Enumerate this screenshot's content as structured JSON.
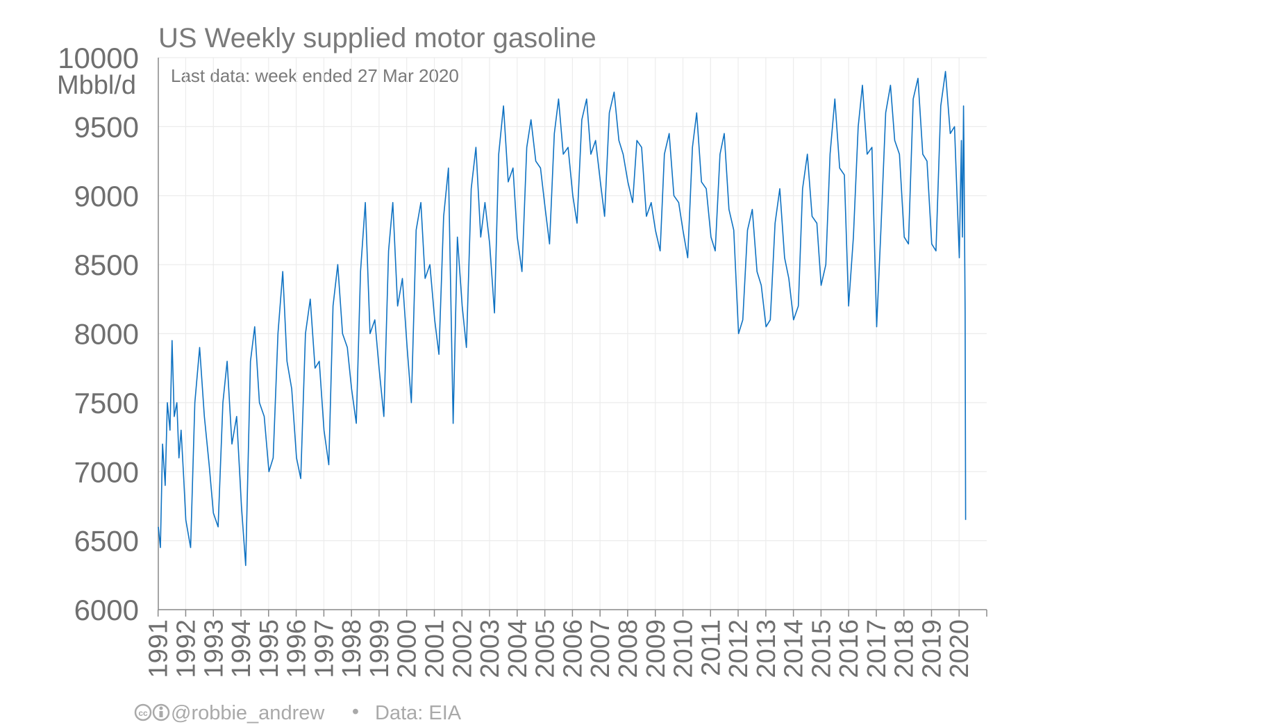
{
  "chart_data": {
    "type": "line",
    "title": "US Weekly supplied motor gasoline",
    "subtitle": "Last data: week ended 27 Mar 2020",
    "unit_label": "Mbbl/d",
    "ylim": [
      6000,
      10000
    ],
    "y_ticks": [
      "6000",
      "6500",
      "7000",
      "7500",
      "8000",
      "8500",
      "9000",
      "9500",
      "10000"
    ],
    "x_ticks": [
      "1991",
      "1992",
      "1993",
      "1994",
      "1995",
      "1996",
      "1997",
      "1998",
      "1999",
      "2000",
      "2001",
      "2002",
      "2003",
      "2004",
      "2005",
      "2006",
      "2007",
      "2008",
      "2009",
      "2010",
      "2011",
      "2012",
      "2013",
      "2014",
      "2015",
      "2016",
      "2017",
      "2018",
      "2019",
      "2020"
    ],
    "xlim": [
      "1991-01-04",
      "2020-12-31"
    ],
    "grid": true,
    "series_color": "#0f72c2",
    "series": [
      {
        "x": [
          "1991-01-04",
          "1991-02-01",
          "1991-03-01",
          "1991-04-05",
          "1991-05-03",
          "1991-06-07",
          "1991-07-05",
          "1991-08-02",
          "1991-09-06",
          "1991-10-04",
          "1991-11-01",
          "1991-12-06",
          "1992-01-03",
          "1992-03-06",
          "1992-05-01",
          "1992-07-03",
          "1992-09-04",
          "1992-11-06",
          "1993-01-01",
          "1993-03-05",
          "1993-05-07",
          "1993-07-02",
          "1993-09-03",
          "1993-11-05",
          "1994-01-07",
          "1994-03-04",
          "1994-05-06",
          "1994-07-01",
          "1994-09-02",
          "1994-11-04",
          "1995-01-06",
          "1995-03-03",
          "1995-05-05",
          "1995-07-07",
          "1995-09-01",
          "1995-11-03",
          "1996-01-05",
          "1996-03-01",
          "1996-05-03",
          "1996-07-05",
          "1996-09-06",
          "1996-11-01",
          "1997-01-03",
          "1997-03-07",
          "1997-05-02",
          "1997-07-04",
          "1997-09-05",
          "1997-11-07",
          "1998-01-02",
          "1998-03-06",
          "1998-05-01",
          "1998-07-03",
          "1998-09-04",
          "1998-11-06",
          "1999-01-01",
          "1999-03-05",
          "1999-05-07",
          "1999-07-02",
          "1999-09-03",
          "1999-11-05",
          "2000-01-07",
          "2000-03-03",
          "2000-05-05",
          "2000-07-07",
          "2000-09-01",
          "2000-11-03",
          "2001-01-05",
          "2001-03-02",
          "2001-05-04",
          "2001-07-06",
          "2001-09-07",
          "2001-11-02",
          "2002-01-04",
          "2002-03-01",
          "2002-05-03",
          "2002-07-05",
          "2002-09-06",
          "2002-11-01",
          "2003-01-03",
          "2003-03-07",
          "2003-05-02",
          "2003-07-04",
          "2003-09-05",
          "2003-11-07",
          "2004-01-02",
          "2004-03-05",
          "2004-05-07",
          "2004-07-02",
          "2004-09-03",
          "2004-11-05",
          "2005-01-07",
          "2005-03-04",
          "2005-05-06",
          "2005-07-01",
          "2005-09-02",
          "2005-11-04",
          "2006-01-06",
          "2006-03-03",
          "2006-05-05",
          "2006-07-07",
          "2006-09-01",
          "2006-11-03",
          "2007-01-05",
          "2007-03-02",
          "2007-05-04",
          "2007-07-06",
          "2007-09-07",
          "2007-11-02",
          "2008-01-04",
          "2008-03-07",
          "2008-05-02",
          "2008-07-04",
          "2008-09-05",
          "2008-11-07",
          "2009-01-02",
          "2009-03-06",
          "2009-05-01",
          "2009-07-03",
          "2009-09-04",
          "2009-11-06",
          "2010-01-01",
          "2010-03-05",
          "2010-05-07",
          "2010-07-02",
          "2010-09-03",
          "2010-11-05",
          "2011-01-07",
          "2011-03-04",
          "2011-05-06",
          "2011-07-01",
          "2011-09-02",
          "2011-11-04",
          "2012-01-06",
          "2012-03-02",
          "2012-05-04",
          "2012-07-06",
          "2012-09-07",
          "2012-11-02",
          "2013-01-04",
          "2013-03-01",
          "2013-05-03",
          "2013-07-05",
          "2013-09-06",
          "2013-11-01",
          "2014-01-03",
          "2014-03-07",
          "2014-05-02",
          "2014-07-04",
          "2014-09-05",
          "2014-11-07",
          "2015-01-02",
          "2015-03-06",
          "2015-05-01",
          "2015-07-03",
          "2015-09-04",
          "2015-11-06",
          "2016-01-01",
          "2016-03-04",
          "2016-05-06",
          "2016-07-01",
          "2016-09-02",
          "2016-11-04",
          "2017-01-06",
          "2017-03-03",
          "2017-05-05",
          "2017-07-07",
          "2017-09-01",
          "2017-11-03",
          "2018-01-05",
          "2018-03-02",
          "2018-05-04",
          "2018-07-06",
          "2018-09-07",
          "2018-11-02",
          "2019-01-04",
          "2019-03-01",
          "2019-05-03",
          "2019-07-05",
          "2019-09-06",
          "2019-11-01",
          "2020-01-03",
          "2020-01-31",
          "2020-02-14",
          "2020-02-28",
          "2020-03-06",
          "2020-03-13",
          "2020-03-20",
          "2020-03-27"
        ],
        "y": [
          6600,
          6450,
          7200,
          6900,
          7500,
          7300,
          7950,
          7400,
          7500,
          7100,
          7300,
          6950,
          6650,
          6450,
          7500,
          7900,
          7400,
          7050,
          6700,
          6600,
          7500,
          7800,
          7200,
          7400,
          6750,
          6320,
          7800,
          8050,
          7500,
          7400,
          7000,
          7100,
          8000,
          8450,
          7800,
          7600,
          7100,
          6950,
          8000,
          8250,
          7750,
          7800,
          7300,
          7050,
          8200,
          8500,
          8000,
          7900,
          7600,
          7350,
          8450,
          8950,
          8000,
          8100,
          7750,
          7400,
          8600,
          8950,
          8200,
          8400,
          7900,
          7500,
          8750,
          8950,
          8400,
          8500,
          8100,
          7850,
          8850,
          9200,
          7350,
          8700,
          8200,
          7900,
          9050,
          9350,
          8700,
          8950,
          8650,
          8150,
          9300,
          9650,
          9100,
          9200,
          8700,
          8450,
          9350,
          9550,
          9250,
          9200,
          8900,
          8650,
          9450,
          9700,
          9300,
          9350,
          9000,
          8800,
          9550,
          9700,
          9300,
          9400,
          9100,
          8850,
          9600,
          9750,
          9400,
          9300,
          9100,
          8950,
          9400,
          9350,
          8850,
          8950,
          8750,
          8600,
          9300,
          9450,
          9000,
          8950,
          8750,
          8550,
          9350,
          9600,
          9100,
          9050,
          8700,
          8600,
          9300,
          9450,
          8900,
          8750,
          8000,
          8100,
          8750,
          8900,
          8450,
          8350,
          8050,
          8100,
          8800,
          9050,
          8550,
          8400,
          8100,
          8200,
          9050,
          9300,
          8850,
          8800,
          8350,
          8500,
          9300,
          9700,
          9200,
          9150,
          8200,
          8700,
          9500,
          9800,
          9300,
          9350,
          8050,
          8750,
          9600,
          9800,
          9400,
          9300,
          8700,
          8650,
          9700,
          9850,
          9300,
          9250,
          8650,
          8600,
          9650,
          9900,
          9450,
          9500,
          8550,
          9400,
          8700,
          9650,
          9300,
          8700,
          8150,
          6650
        ]
      }
    ]
  },
  "footer": {
    "license_icon": "creative-commons-by-icon",
    "author": "@robbie_andrew",
    "separator": "•",
    "source": "Data: EIA"
  }
}
